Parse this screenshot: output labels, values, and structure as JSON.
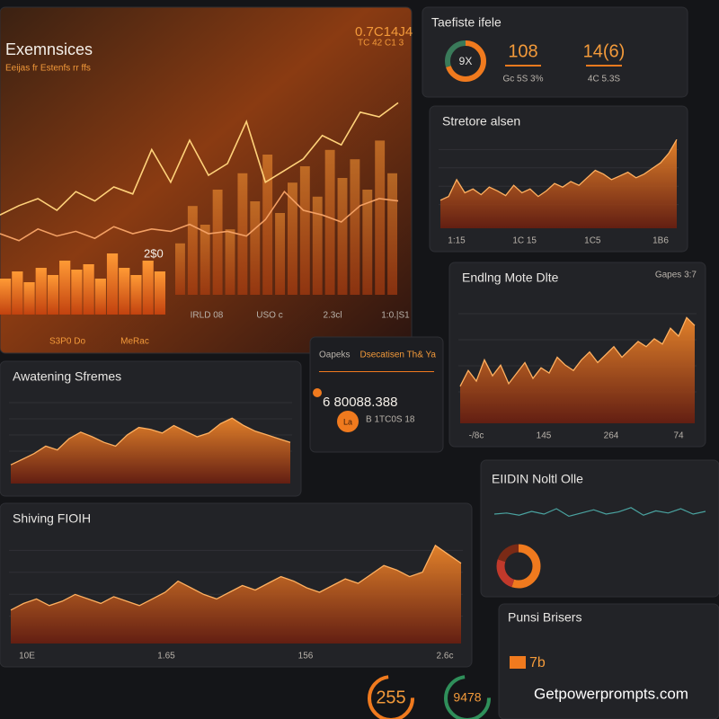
{
  "panels": [
    {
      "kind": "hero",
      "title": "Exemnsices",
      "subtitle": "Eeijas fr Estenfs rr ffs",
      "value": "0.7C14J4",
      "value_sub": "TC 42 C1 3",
      "label": "2$0",
      "ylim": [
        0,
        100
      ],
      "line_a": [
        38,
        42,
        45,
        40,
        48,
        44,
        50,
        47,
        66,
        52,
        70,
        55,
        60,
        78,
        52,
        57,
        62,
        72,
        68,
        82,
        80,
        86
      ],
      "line_b": [
        30,
        27,
        32,
        29,
        31,
        28,
        33,
        30,
        32,
        31,
        34,
        30,
        31,
        29,
        36,
        48,
        40,
        38,
        35,
        42,
        45,
        44
      ],
      "bars": [
        20,
        24,
        18,
        26,
        22,
        30,
        25,
        28,
        20,
        34,
        26,
        22,
        30,
        24
      ],
      "tall_bars": [
        22,
        38,
        30,
        45,
        28,
        52,
        40,
        60,
        35,
        48,
        55,
        42,
        62,
        50,
        58,
        45,
        66,
        52
      ],
      "axis": [
        "IRLD 08",
        "USO c",
        "2.3cl",
        "1:0.|S1"
      ],
      "footer": [
        "S3P0 Do",
        "MeRac"
      ]
    },
    {
      "kind": "stats",
      "title": "Taefiste ifele",
      "donut_label": "9X",
      "segments": [
        70,
        30
      ],
      "colors": [
        "#f07a1e",
        "#3a7a5a"
      ],
      "figures": [
        "108",
        "14(6)"
      ],
      "notes": [
        "Gc 5S 3%",
        "4C 5.3S"
      ]
    },
    {
      "kind": "area",
      "title": "Stretore alsen",
      "ylim": [
        0,
        100
      ],
      "series": [
        30,
        34,
        52,
        38,
        42,
        36,
        44,
        40,
        35,
        46,
        38,
        42,
        34,
        40,
        48,
        44,
        50,
        46,
        54,
        62,
        58,
        52,
        56,
        60,
        54,
        58,
        64,
        70,
        80,
        95
      ],
      "axis": [
        "1:15",
        "1C 15",
        "1C5",
        "1B6"
      ]
    },
    {
      "kind": "area",
      "title": "Endlng Mote Dlte",
      "corner": "Gapes 3:7",
      "ylim": [
        0,
        100
      ],
      "series": [
        28,
        40,
        32,
        48,
        36,
        44,
        30,
        38,
        46,
        34,
        42,
        38,
        50,
        44,
        40,
        48,
        54,
        46,
        52,
        58,
        50,
        56,
        62,
        58,
        64,
        60,
        72,
        66,
        80,
        74
      ],
      "axis": [
        "-/8c",
        "145",
        "264",
        "74"
      ]
    },
    {
      "kind": "area",
      "title": "Awatening Sfremes",
      "ylim": [
        0,
        100
      ],
      "series": [
        20,
        26,
        32,
        40,
        36,
        48,
        55,
        50,
        44,
        40,
        52,
        60,
        58,
        54,
        62,
        56,
        50,
        54,
        64,
        70,
        62,
        56,
        52,
        48,
        44
      ],
      "axis": []
    },
    {
      "kind": "card",
      "title": "Oapeks",
      "heading": "Dsecatisen Th& Ya",
      "value": "6 80088.388",
      "note": "B 1TC0S 18",
      "tag": "La"
    },
    {
      "kind": "area",
      "title": "Shiving FIOIH",
      "ylim": [
        0,
        100
      ],
      "series": [
        30,
        36,
        40,
        34,
        38,
        44,
        40,
        36,
        42,
        38,
        34,
        40,
        46,
        56,
        50,
        44,
        40,
        46,
        52,
        48,
        54,
        60,
        56,
        50,
        46,
        52,
        58,
        54,
        62,
        70,
        66,
        60,
        64,
        88,
        80,
        72
      ],
      "axis": [
        "10E",
        "1.65",
        "156",
        "2.6c"
      ]
    },
    {
      "kind": "donut",
      "title": "EIIDIN Noltl Olle",
      "segments": [
        55,
        25,
        20
      ],
      "colors": [
        "#f07a1e",
        "#c0392b",
        "#7a2a16"
      ],
      "ylim": [
        0,
        100
      ],
      "series": [
        50,
        52,
        48,
        55,
        50,
        60,
        46,
        52,
        58,
        50,
        54,
        62,
        48,
        56,
        52,
        60,
        50,
        55
      ]
    },
    {
      "kind": "card2",
      "title": "Punsi Brisers",
      "value": "7b"
    },
    {
      "kind": "gauges",
      "values": [
        "255",
        "9478"
      ]
    }
  ],
  "watermark": "Getpowerprompts.com"
}
